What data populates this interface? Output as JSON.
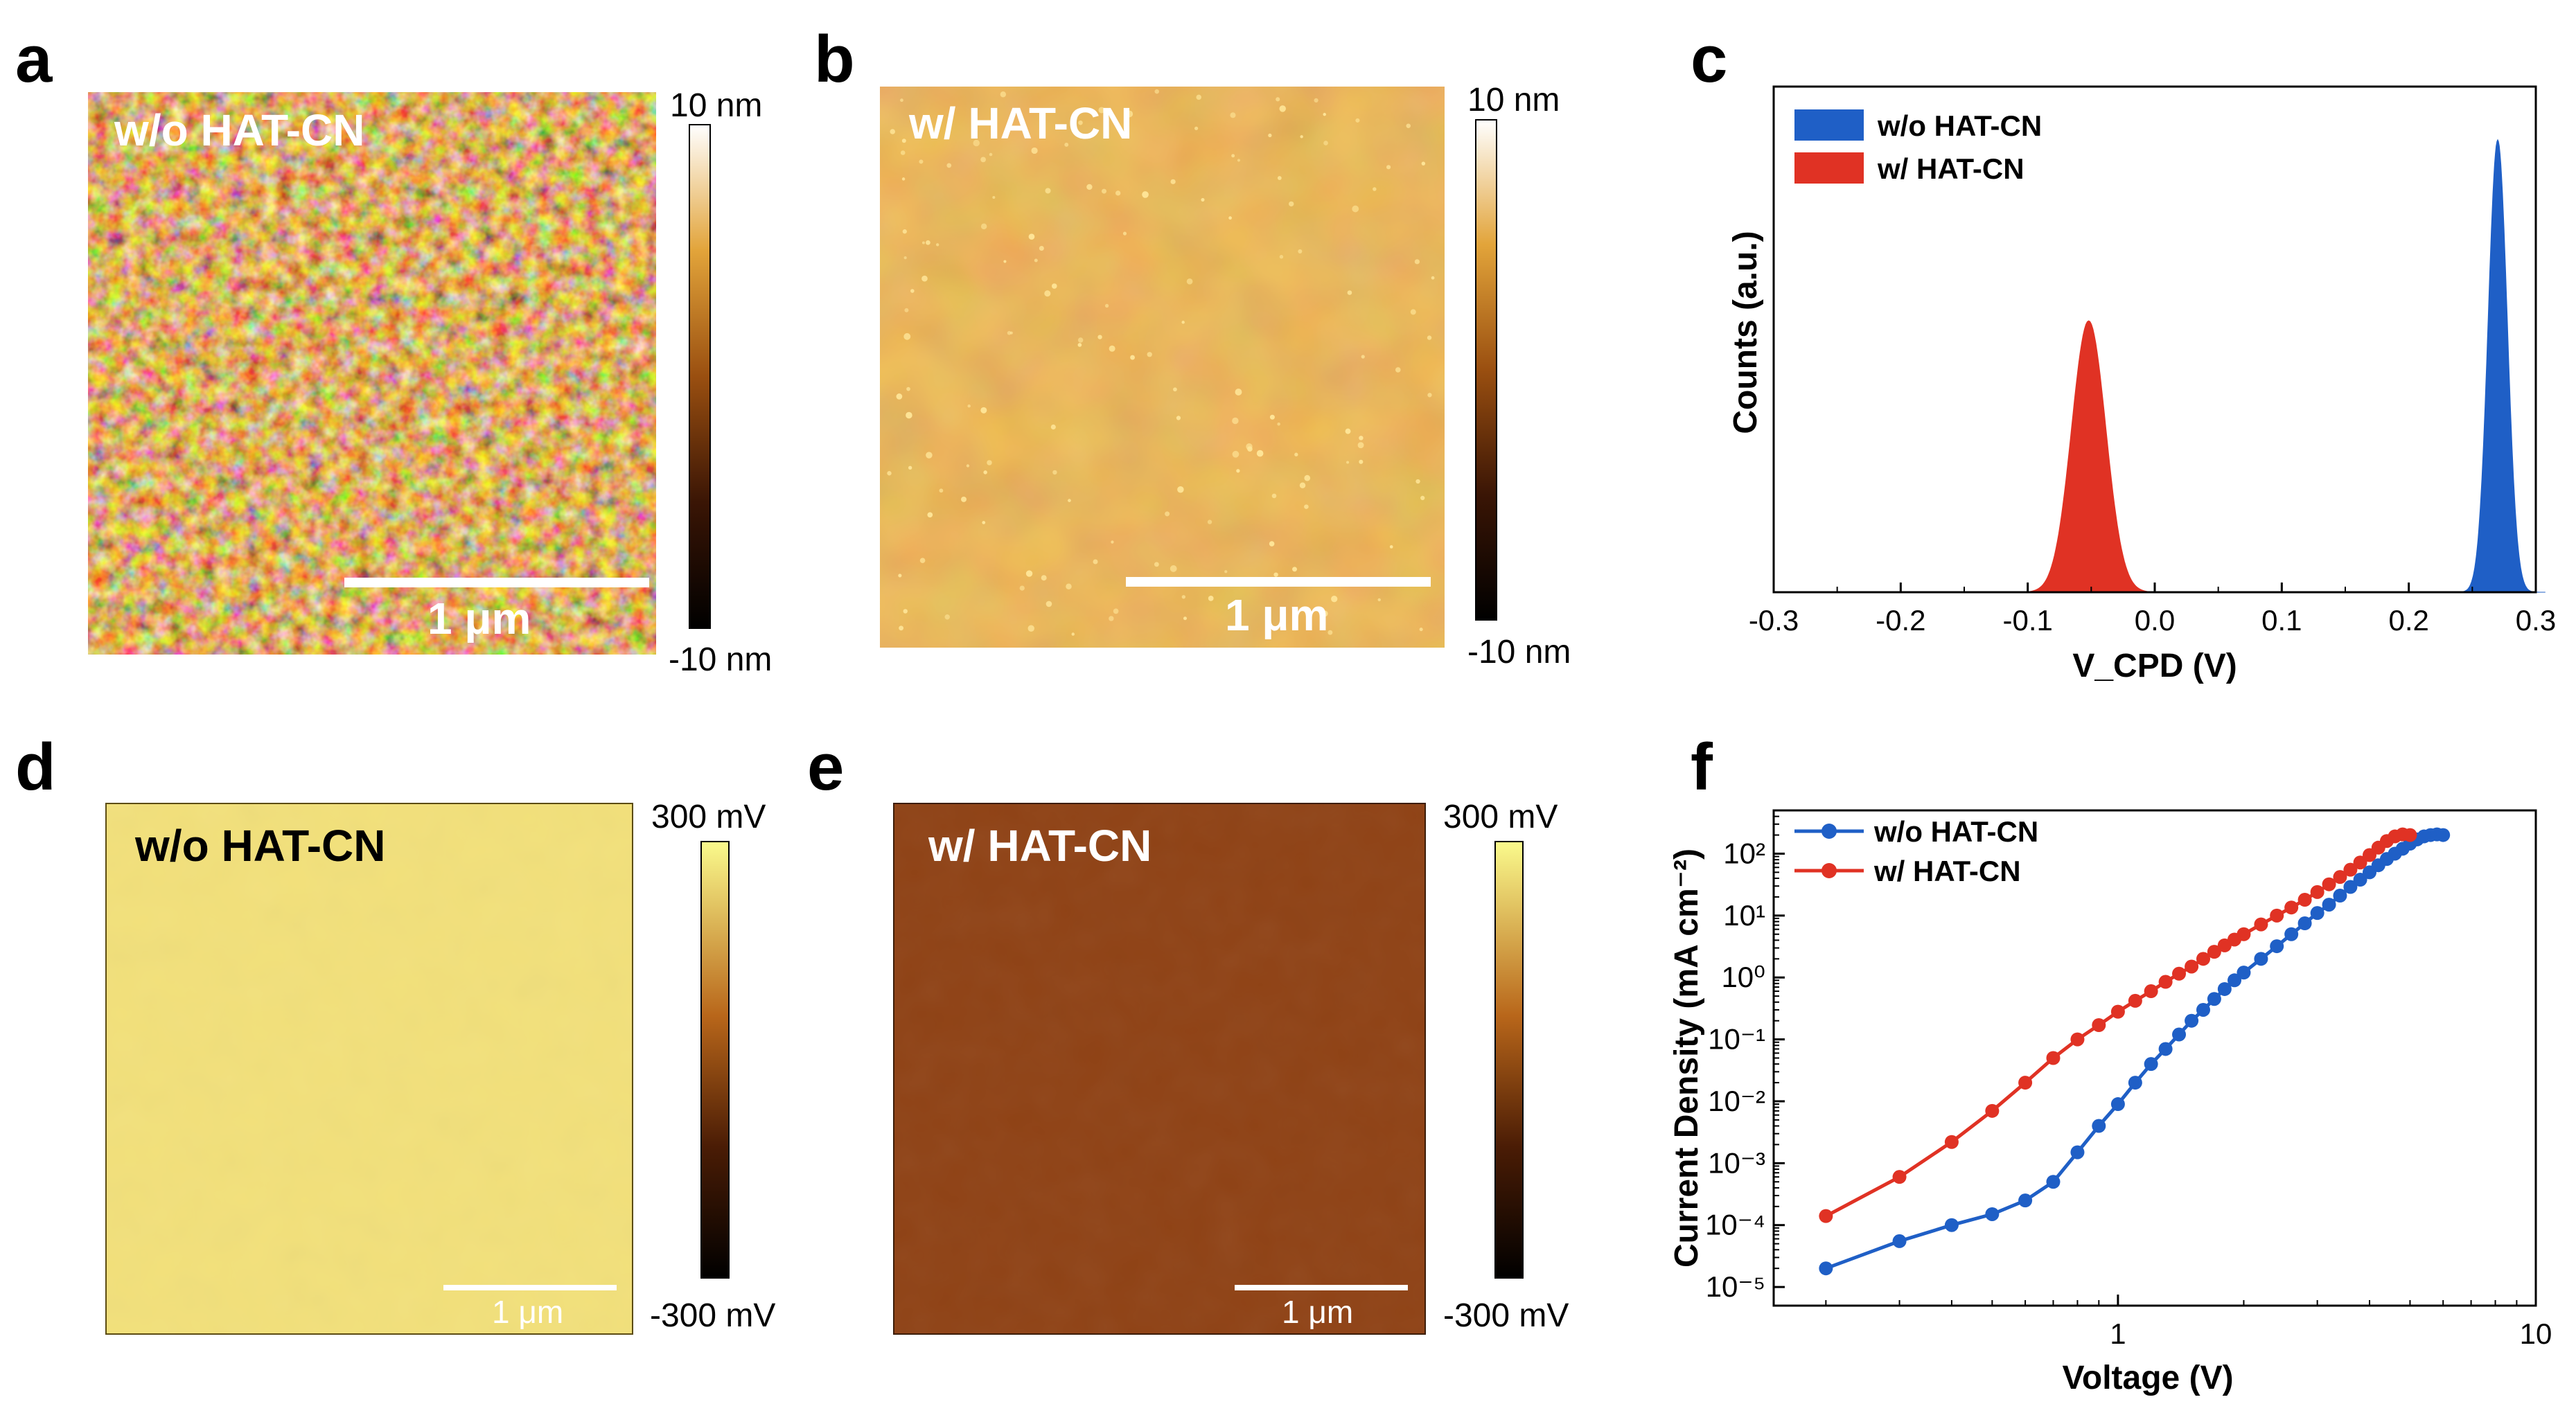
{
  "panels": {
    "a": {
      "letter": "a",
      "label": "w/o HAT-CN",
      "scalebar": "1 μm",
      "cbar_max": "10 nm",
      "cbar_min": "-10 nm"
    },
    "b": {
      "letter": "b",
      "label": "w/  HAT-CN",
      "scalebar": "1 μm",
      "cbar_max": "10 nm",
      "cbar_min": "-10 nm"
    },
    "c": {
      "letter": "c"
    },
    "d": {
      "letter": "d",
      "label": "w/o  HAT-CN",
      "scalebar": "1 μm",
      "cbar_max": "300 mV",
      "cbar_min": "-300 mV"
    },
    "e": {
      "letter": "e",
      "label": "w/  HAT-CN",
      "scalebar": "1 μm",
      "cbar_max": "300 mV",
      "cbar_min": "-300 mV"
    },
    "f": {
      "letter": "f"
    }
  },
  "colors": {
    "blue": "#1f5fc6",
    "red": "#e03224",
    "kpfm_d": "#f2e07a",
    "kpfm_e": "#8f4215"
  },
  "chart_data": [
    {
      "id": "c",
      "type": "area",
      "title": "",
      "xlabel": "V_CPD (V)",
      "ylabel": "Counts (a.u.)",
      "xlim": [
        -0.3,
        0.3
      ],
      "xticks": [
        "-0.3",
        "-0.2",
        "-0.1",
        "0.0",
        "0.1",
        "0.2",
        "0.3"
      ],
      "legend_position": "top-left",
      "series": [
        {
          "name": "w/o HAT-CN",
          "color": "#1f5fc6",
          "center": 0.27,
          "sigma": 0.0075,
          "peak": 1.0
        },
        {
          "name": "w/   HAT-CN",
          "color": "#e03224",
          "center": -0.052,
          "sigma": 0.0135,
          "peak": 0.6
        }
      ]
    },
    {
      "id": "f",
      "type": "line",
      "title": "",
      "xlabel": "Voltage (V)",
      "ylabel": "Current Density (mA cm⁻²)",
      "xscale": "log",
      "yscale": "log",
      "xlim": [
        0.15,
        10
      ],
      "ylim": [
        5e-06,
        500
      ],
      "xticks": [
        "1",
        "10"
      ],
      "yticks": [
        "10⁻⁵",
        "10⁻⁴",
        "10⁻³",
        "10⁻²",
        "10⁻¹",
        "10⁰",
        "10¹",
        "10²"
      ],
      "legend_position": "top-left",
      "series": [
        {
          "name": "w/o HAT-CN",
          "color": "#1f5fc6",
          "x": [
            0.2,
            0.3,
            0.4,
            0.5,
            0.6,
            0.7,
            0.8,
            0.9,
            1.0,
            1.1,
            1.2,
            1.3,
            1.4,
            1.5,
            1.6,
            1.7,
            1.8,
            1.9,
            2.0,
            2.2,
            2.4,
            2.6,
            2.8,
            3.0,
            3.2,
            3.4,
            3.6,
            3.8,
            4.0,
            4.2,
            4.4,
            4.6,
            4.8,
            5.0,
            5.2,
            5.4,
            5.6,
            5.8,
            6.0
          ],
          "y": [
            2e-05,
            5.5e-05,
            0.0001,
            0.00015,
            0.00025,
            0.0005,
            0.0015,
            0.004,
            0.009,
            0.02,
            0.04,
            0.07,
            0.12,
            0.2,
            0.3,
            0.45,
            0.65,
            0.9,
            1.2,
            2.0,
            3.2,
            5.0,
            7.5,
            11,
            15,
            21,
            29,
            38,
            50,
            65,
            82,
            100,
            120,
            145,
            170,
            190,
            200,
            205,
            200
          ]
        },
        {
          "name": "w/   HAT-CN",
          "color": "#e03224",
          "x": [
            0.2,
            0.3,
            0.4,
            0.5,
            0.6,
            0.7,
            0.8,
            0.9,
            1.0,
            1.1,
            1.2,
            1.3,
            1.4,
            1.5,
            1.6,
            1.7,
            1.8,
            1.9,
            2.0,
            2.2,
            2.4,
            2.6,
            2.8,
            3.0,
            3.2,
            3.4,
            3.6,
            3.8,
            4.0,
            4.2,
            4.4,
            4.6,
            4.8,
            5.0
          ],
          "y": [
            0.00014,
            0.0006,
            0.0022,
            0.007,
            0.02,
            0.05,
            0.1,
            0.17,
            0.28,
            0.42,
            0.6,
            0.85,
            1.15,
            1.5,
            2.0,
            2.6,
            3.3,
            4.1,
            5.0,
            7.2,
            10,
            13.5,
            18,
            24,
            32,
            42,
            55,
            72,
            95,
            125,
            160,
            190,
            205,
            200
          ]
        }
      ]
    }
  ]
}
